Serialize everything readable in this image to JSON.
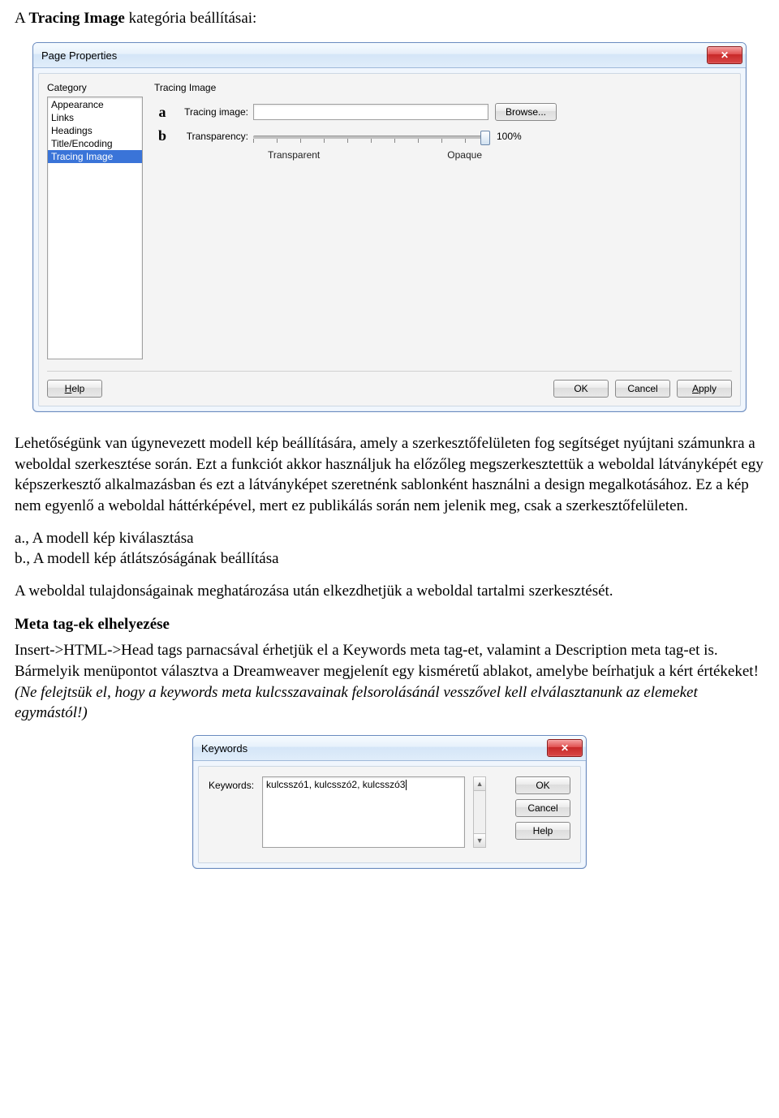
{
  "doc": {
    "heading_prefix": "A ",
    "heading_bold": "Tracing Image",
    "heading_suffix": " kategória beállításai:",
    "para1": "Lehetőségünk van úgynevezett modell kép beállítására, amely a szerkesztőfelületen fog segítséget nyújtani számunkra a weboldal szerkesztése során. Ezt a funkciót akkor használjuk ha előzőleg megszerkesztettük a weboldal látványképét egy képszerkesztő alkalmazásban és ezt a látványképet szeretnénk sablonként használni a design megalkotásához. Ez a kép nem egyenlő a weboldal háttérképével, mert ez publikálás során nem jelenik meg, csak a szerkesztőfelületen.",
    "item_a_label": "a.,",
    "item_a_text": " A modell kép kiválasztása",
    "item_b_label": "b.,",
    "item_b_text": " A modell kép átlátszóságának beállítása",
    "para2": "A weboldal tulajdonságainak meghatározása után elkezdhetjük a weboldal tartalmi szerkesztését.",
    "subheading": "Meta tag-ek elhelyezése",
    "para3a": "Insert->HTML->Head tags parnacsával érhetjük el a Keywords meta tag-et, valamint a Description meta tag-et is. Bármelyik menüpontot választva a Dreamweaver megjelenít egy kisméretű ablakot, amelybe beírhatjuk a kért értékeket! ",
    "para3b_italic": "(Ne felejtsük el, hogy a keywords meta kulcsszavainak felsorolásánál vesszővel kell elválasztanunk az elemeket egymástól!)"
  },
  "dialog1": {
    "title": "Page Properties",
    "close_glyph": "✕",
    "category_label": "Category",
    "categories": [
      "Appearance",
      "Links",
      "Headings",
      "Title/Encoding",
      "Tracing Image"
    ],
    "selected_index": 4,
    "section_title": "Tracing Image",
    "marker_a": "a",
    "marker_b": "b",
    "tracing_label": "Tracing image:",
    "tracing_value": "",
    "browse_label": "Browse...",
    "transparency_label": "Transparency:",
    "percent": "100%",
    "cap_transparent": "Transparent",
    "cap_opaque": "Opaque",
    "help_u": "H",
    "help_rest": "elp",
    "ok_label": "OK",
    "cancel_label": "Cancel",
    "apply_u": "A",
    "apply_rest": "pply"
  },
  "dialog2": {
    "title": "Keywords",
    "close_glyph": "✕",
    "keywords_label": "Keywords:",
    "keywords_value": "kulcsszó1, kulcsszó2, kulcsszó3",
    "ok_label": "OK",
    "cancel_label": "Cancel",
    "help_label": "Help"
  },
  "colors": {
    "selection_bg": "#3a74d8"
  }
}
